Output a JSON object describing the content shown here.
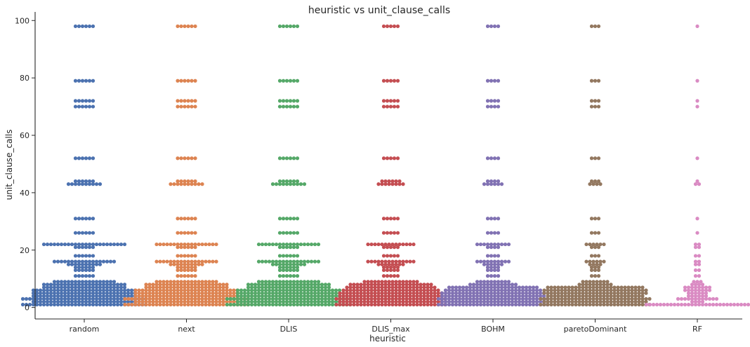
{
  "chart_data": {
    "type": "swarm",
    "title": "heuristic vs unit_clause_calls",
    "xlabel": "heuristic",
    "ylabel": "unit_clause_calls",
    "ylim": [
      -4,
      103
    ],
    "yticks": [
      0,
      20,
      40,
      60,
      80,
      100
    ],
    "grid": false,
    "categories": [
      "random",
      "next",
      "DLIS",
      "DLIS_max",
      "BOHM",
      "paretoDominant",
      "RF"
    ],
    "colors": [
      "#4c72b0",
      "#dd8452",
      "#55a868",
      "#c44e52",
      "#8172b3",
      "#937860",
      "#da8bc3"
    ],
    "series": [
      {
        "values_counts": [
          [
            98,
            6
          ],
          [
            79,
            6
          ],
          [
            72,
            6
          ],
          [
            70,
            6
          ],
          [
            52,
            6
          ],
          [
            44,
            6
          ],
          [
            43,
            10
          ],
          [
            31,
            6
          ],
          [
            26,
            6
          ],
          [
            22,
            24
          ],
          [
            21,
            6
          ],
          [
            18,
            6
          ],
          [
            16,
            18
          ],
          [
            15,
            10
          ],
          [
            14,
            6
          ],
          [
            13,
            6
          ],
          [
            11,
            6
          ],
          [
            9,
            18
          ],
          [
            8,
            24
          ],
          [
            7,
            24
          ],
          [
            6,
            30
          ],
          [
            5,
            30
          ],
          [
            4,
            30
          ],
          [
            3,
            36
          ],
          [
            2,
            30
          ],
          [
            1,
            36
          ]
        ]
      },
      {
        "values_counts": [
          [
            98,
            6
          ],
          [
            79,
            6
          ],
          [
            72,
            6
          ],
          [
            70,
            6
          ],
          [
            52,
            6
          ],
          [
            44,
            6
          ],
          [
            43,
            10
          ],
          [
            31,
            6
          ],
          [
            26,
            6
          ],
          [
            22,
            18
          ],
          [
            21,
            6
          ],
          [
            18,
            6
          ],
          [
            16,
            18
          ],
          [
            15,
            10
          ],
          [
            14,
            6
          ],
          [
            13,
            6
          ],
          [
            11,
            6
          ],
          [
            9,
            18
          ],
          [
            8,
            24
          ],
          [
            7,
            24
          ],
          [
            6,
            30
          ],
          [
            5,
            30
          ],
          [
            4,
            30
          ],
          [
            3,
            36
          ],
          [
            2,
            30
          ],
          [
            1,
            36
          ]
        ]
      },
      {
        "values_counts": [
          [
            98,
            6
          ],
          [
            79,
            6
          ],
          [
            72,
            6
          ],
          [
            70,
            6
          ],
          [
            52,
            6
          ],
          [
            44,
            6
          ],
          [
            43,
            10
          ],
          [
            31,
            6
          ],
          [
            26,
            6
          ],
          [
            22,
            18
          ],
          [
            21,
            6
          ],
          [
            18,
            6
          ],
          [
            16,
            18
          ],
          [
            15,
            10
          ],
          [
            14,
            6
          ],
          [
            13,
            6
          ],
          [
            11,
            6
          ],
          [
            9,
            18
          ],
          [
            8,
            24
          ],
          [
            7,
            24
          ],
          [
            6,
            30
          ],
          [
            5,
            30
          ],
          [
            4,
            30
          ],
          [
            3,
            36
          ],
          [
            2,
            30
          ],
          [
            1,
            36
          ]
        ]
      },
      {
        "values_counts": [
          [
            98,
            5
          ],
          [
            79,
            5
          ],
          [
            72,
            5
          ],
          [
            70,
            5
          ],
          [
            52,
            5
          ],
          [
            44,
            6
          ],
          [
            43,
            8
          ],
          [
            31,
            5
          ],
          [
            26,
            5
          ],
          [
            22,
            14
          ],
          [
            21,
            5
          ],
          [
            18,
            5
          ],
          [
            16,
            14
          ],
          [
            15,
            8
          ],
          [
            14,
            5
          ],
          [
            13,
            5
          ],
          [
            11,
            5
          ],
          [
            9,
            16
          ],
          [
            8,
            24
          ],
          [
            7,
            26
          ],
          [
            6,
            28
          ],
          [
            5,
            30
          ],
          [
            4,
            30
          ],
          [
            3,
            32
          ],
          [
            2,
            30
          ],
          [
            1,
            32
          ]
        ]
      },
      {
        "values_counts": [
          [
            98,
            4
          ],
          [
            79,
            4
          ],
          [
            72,
            4
          ],
          [
            70,
            4
          ],
          [
            52,
            4
          ],
          [
            44,
            4
          ],
          [
            43,
            6
          ],
          [
            31,
            4
          ],
          [
            26,
            4
          ],
          [
            22,
            10
          ],
          [
            21,
            4
          ],
          [
            18,
            4
          ],
          [
            16,
            10
          ],
          [
            15,
            6
          ],
          [
            14,
            4
          ],
          [
            13,
            4
          ],
          [
            11,
            4
          ],
          [
            9,
            10
          ],
          [
            8,
            14
          ],
          [
            7,
            26
          ],
          [
            6,
            28
          ],
          [
            5,
            30
          ],
          [
            4,
            30
          ],
          [
            3,
            32
          ],
          [
            2,
            30
          ],
          [
            1,
            32
          ]
        ]
      },
      {
        "values_counts": [
          [
            98,
            3
          ],
          [
            79,
            3
          ],
          [
            72,
            3
          ],
          [
            70,
            3
          ],
          [
            52,
            3
          ],
          [
            44,
            3
          ],
          [
            43,
            4
          ],
          [
            31,
            3
          ],
          [
            26,
            3
          ],
          [
            22,
            6
          ],
          [
            21,
            3
          ],
          [
            18,
            3
          ],
          [
            16,
            6
          ],
          [
            15,
            4
          ],
          [
            14,
            3
          ],
          [
            13,
            3
          ],
          [
            11,
            3
          ],
          [
            9,
            8
          ],
          [
            8,
            10
          ],
          [
            7,
            28
          ],
          [
            6,
            30
          ],
          [
            5,
            30
          ],
          [
            4,
            28
          ],
          [
            3,
            32
          ],
          [
            2,
            30
          ],
          [
            1,
            32
          ]
        ]
      },
      {
        "values_counts": [
          [
            98,
            1
          ],
          [
            79,
            1
          ],
          [
            72,
            1
          ],
          [
            70,
            1
          ],
          [
            52,
            1
          ],
          [
            44,
            1
          ],
          [
            43,
            2
          ],
          [
            31,
            1
          ],
          [
            26,
            1
          ],
          [
            22,
            2
          ],
          [
            21,
            2
          ],
          [
            18,
            2
          ],
          [
            16,
            2
          ],
          [
            15,
            2
          ],
          [
            13,
            2
          ],
          [
            11,
            2
          ],
          [
            9,
            3
          ],
          [
            8,
            4
          ],
          [
            7,
            8
          ],
          [
            6,
            8
          ],
          [
            5,
            6
          ],
          [
            4,
            6
          ],
          [
            3,
            12
          ],
          [
            2,
            4
          ],
          [
            1,
            30
          ]
        ]
      }
    ]
  }
}
